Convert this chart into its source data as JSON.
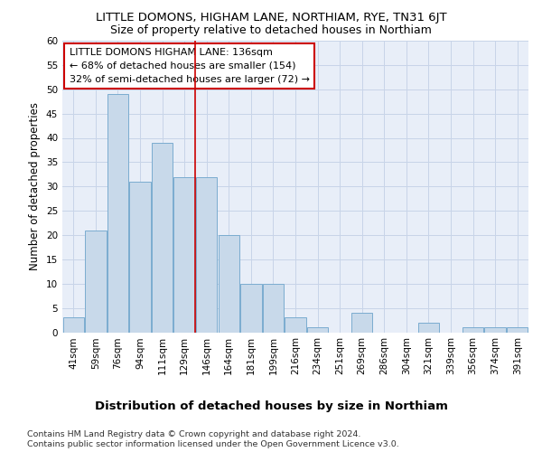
{
  "title": "LITTLE DOMONS, HIGHAM LANE, NORTHIAM, RYE, TN31 6JT",
  "subtitle": "Size of property relative to detached houses in Northiam",
  "xlabel": "Distribution of detached houses by size in Northiam",
  "ylabel": "Number of detached properties",
  "categories": [
    "41sqm",
    "59sqm",
    "76sqm",
    "94sqm",
    "111sqm",
    "129sqm",
    "146sqm",
    "164sqm",
    "181sqm",
    "199sqm",
    "216sqm",
    "234sqm",
    "251sqm",
    "269sqm",
    "286sqm",
    "304sqm",
    "321sqm",
    "339sqm",
    "356sqm",
    "374sqm",
    "391sqm"
  ],
  "values": [
    3,
    21,
    49,
    31,
    39,
    32,
    32,
    20,
    10,
    10,
    3,
    1,
    0,
    4,
    0,
    0,
    2,
    0,
    1,
    1,
    1
  ],
  "bar_color": "#c8d9ea",
  "bar_edge_color": "#7bacd0",
  "grid_color": "#c8d4e8",
  "background_color": "#e8eef8",
  "annotation_line1": "LITTLE DOMONS HIGHAM LANE: 136sqm",
  "annotation_line2": "← 68% of detached houses are smaller (154)",
  "annotation_line3": "32% of semi-detached houses are larger (72) →",
  "annotation_box_facecolor": "#ffffff",
  "annotation_box_edgecolor": "#cc0000",
  "vline_x": 5.5,
  "vline_color": "#cc0000",
  "ylim": [
    0,
    60
  ],
  "yticks": [
    0,
    5,
    10,
    15,
    20,
    25,
    30,
    35,
    40,
    45,
    50,
    55,
    60
  ],
  "footer_line1": "Contains HM Land Registry data © Crown copyright and database right 2024.",
  "footer_line2": "Contains public sector information licensed under the Open Government Licence v3.0.",
  "title_fontsize": 9.5,
  "subtitle_fontsize": 9.0,
  "xlabel_fontsize": 9.5,
  "ylabel_fontsize": 8.5,
  "tick_fontsize": 7.5,
  "annotation_fontsize": 8.0,
  "footer_fontsize": 6.8
}
